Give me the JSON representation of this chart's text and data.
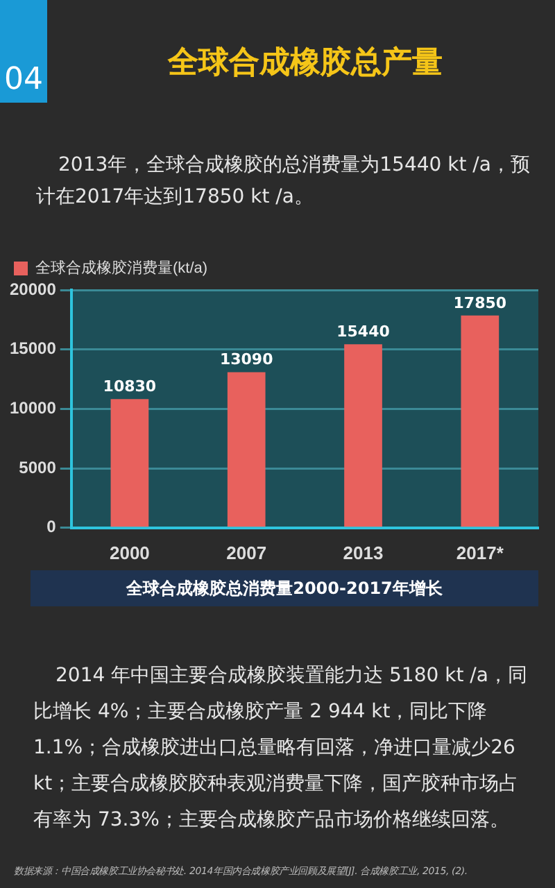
{
  "chart_data": {
    "type": "bar",
    "title": "全球合成橡胶总产量",
    "subtitle": "2013年，全球合成橡胶的总消费量为15440 kt /a，预计在2017年达到17850 kt /a。",
    "categories": [
      "2000",
      "2007",
      "2013",
      "2017*"
    ],
    "series": [
      {
        "name": "全球合成橡胶消费量(kt/a)",
        "color": "#e8615d",
        "values": [
          10830,
          13090,
          15440,
          17850
        ]
      }
    ],
    "ylim": [
      0,
      20000
    ],
    "yticks": [
      0,
      5000,
      10000,
      15000,
      20000
    ],
    "grid": "y",
    "legend": "top left",
    "data_labels": true,
    "annotations": [
      "04",
      "全球合成橡胶总消费量2000-2017年增长",
      "2014 年中国主要合成橡胶装置能力达 5180 kt /a，同比增长 4%；主要合成橡胶产量 2 944 kt，同比下降 1.1%；合成橡胶进出口总量略有回落，净进口量减少26 kt；主要合成橡胶胶种表观消费量下降，国产胶种市场占有率为 73.3%；主要合成橡胶产品市场价格继续回落。",
      "数据来源：中国合成橡胶工业协会秘书处. 2014年国内合成橡胶产业回顾及展望[J]. 合成橡胶工业, 2015, (2)."
    ]
  }
}
